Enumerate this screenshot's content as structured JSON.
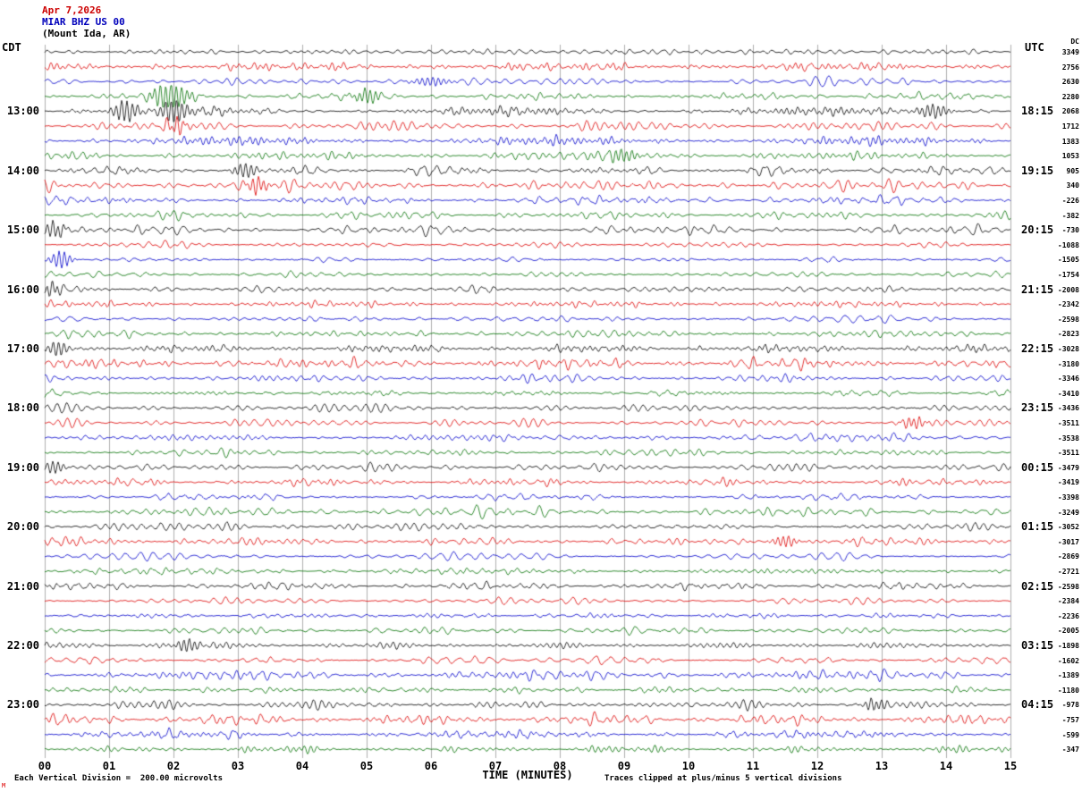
{
  "header": {
    "date": "Apr 7,2026",
    "station": "MIAR BHZ US 00",
    "location": "(Mount Ida, AR)",
    "left_tz": "CDT",
    "right_tz": "UTC",
    "dc_label": "DC"
  },
  "x_axis": {
    "label": "TIME (MINUTES)",
    "ticks": [
      "00",
      "01",
      "02",
      "03",
      "04",
      "05",
      "06",
      "07",
      "08",
      "09",
      "10",
      "11",
      "12",
      "13",
      "14",
      "15"
    ]
  },
  "footer": {
    "scale_note": "Each Vertical Division =  200.00 microvolts",
    "clip_note": "Traces clipped at plus/minus 5 vertical divisions",
    "red_mark": "M"
  },
  "chart_data": {
    "type": "line",
    "subtype": "seismogram-helicorder",
    "title": "MIAR BHZ US 00 (Mount Ida, AR) helicorder, Apr 7,2026",
    "minutes_per_line": 15,
    "lines_per_hour": 4,
    "trace_colors": [
      "#000000",
      "#dd0000",
      "#0000cc",
      "#007000"
    ],
    "grid": {
      "x_min": 0,
      "x_max": 15,
      "x_step": 1,
      "gridlines": "vertical-only"
    },
    "hour_groups": [
      {
        "cdt": "",
        "utc": ""
      },
      {
        "cdt": "13:00",
        "utc": "18:15"
      },
      {
        "cdt": "14:00",
        "utc": "19:15"
      },
      {
        "cdt": "15:00",
        "utc": "20:15"
      },
      {
        "cdt": "16:00",
        "utc": "21:15"
      },
      {
        "cdt": "17:00",
        "utc": "22:15"
      },
      {
        "cdt": "18:00",
        "utc": "23:15"
      },
      {
        "cdt": "19:00",
        "utc": "00:15"
      },
      {
        "cdt": "20:00",
        "utc": "01:15"
      },
      {
        "cdt": "21:00",
        "utc": "02:15"
      },
      {
        "cdt": "22:00",
        "utc": "03:15"
      },
      {
        "cdt": "23:00",
        "utc": "04:15"
      }
    ],
    "dc_offsets": [
      3349,
      2756,
      2630,
      2280,
      2068,
      1712,
      1383,
      1053,
      905,
      340,
      -226,
      -382,
      -730,
      -1088,
      -1505,
      -1754,
      -2008,
      -2342,
      -2598,
      -2823,
      -3028,
      -3180,
      -3346,
      -3410,
      -3436,
      -3511,
      -3538,
      -3511,
      -3479,
      -3419,
      -3398,
      -3249,
      -3052,
      -3017,
      -2869,
      -2721,
      -2598,
      -2384,
      -2236,
      -2005,
      -1898,
      -1602,
      -1389,
      -1180,
      -978,
      -757,
      -599,
      -347
    ],
    "events": [
      {
        "row": 3,
        "minute": 1.95,
        "amp": 15,
        "width": 14
      },
      {
        "row": 3,
        "minute": 5.0,
        "amp": 8,
        "width": 10
      },
      {
        "row": 2,
        "minute": 6.0,
        "amp": 5,
        "width": 14
      },
      {
        "row": 4,
        "minute": 1.25,
        "amp": 10,
        "width": 9
      },
      {
        "row": 4,
        "minute": 2.0,
        "amp": 12,
        "width": 11
      },
      {
        "row": 4,
        "minute": 13.8,
        "amp": 7,
        "width": 12
      },
      {
        "row": 5,
        "minute": 2.05,
        "amp": 7,
        "width": 9
      },
      {
        "row": 7,
        "minute": 9.0,
        "amp": 6,
        "width": 14
      },
      {
        "row": 8,
        "minute": 3.1,
        "amp": 7,
        "width": 10
      },
      {
        "row": 9,
        "minute": 3.3,
        "amp": 9,
        "width": 8
      },
      {
        "row": 12,
        "minute": 0.15,
        "amp": 9,
        "width": 8
      },
      {
        "row": 14,
        "minute": 0.25,
        "amp": 10,
        "width": 8
      },
      {
        "row": 16,
        "minute": 0.1,
        "amp": 8,
        "width": 7
      },
      {
        "row": 20,
        "minute": 0.2,
        "amp": 8,
        "width": 8
      },
      {
        "row": 25,
        "minute": 13.5,
        "amp": 6,
        "width": 10
      },
      {
        "row": 28,
        "minute": 0.15,
        "amp": 7,
        "width": 8
      },
      {
        "row": 33,
        "minute": 11.5,
        "amp": 6,
        "width": 10
      },
      {
        "row": 40,
        "minute": 2.2,
        "amp": 7,
        "width": 10
      },
      {
        "row": 44,
        "minute": 12.9,
        "amp": 6,
        "width": 10
      }
    ],
    "noise": {
      "base_amp": 1.1,
      "clip": 12
    }
  }
}
